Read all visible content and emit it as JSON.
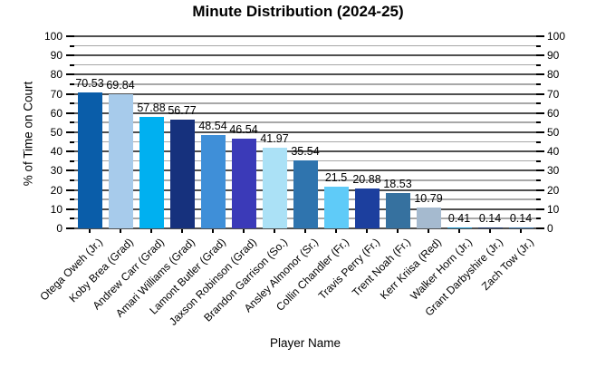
{
  "chart_data": {
    "type": "bar",
    "title": "Minute Distribution (2024-25)",
    "xlabel": "Player Name",
    "ylabel": "% of Time on Court",
    "ylim": [
      0,
      100
    ],
    "ytick_step": 10,
    "yminor_step": 5,
    "grid": true,
    "legend": "none",
    "categories": [
      "Otega Oweh (Jr.)",
      "Koby Brea (Grad)",
      "Andrew Carr (Grad)",
      "Amari Williams (Grad)",
      "Lamont Butler (Grad)",
      "Jaxson Robinson (Grad)",
      "Brandon Garrison (So.)",
      "Ansley Almonor (Sr.)",
      "Collin Chandler (Fr.)",
      "Travis Perry (Fr.)",
      "Trent Noah (Fr.)",
      "Kerr Kriisa (Red)",
      "Walker Horn (Jr.)",
      "Grant Darbyshire (Jr.)",
      "Zach Tow (Jr.)"
    ],
    "values": [
      70.53,
      69.84,
      57.88,
      56.77,
      48.54,
      46.54,
      41.97,
      35.54,
      21.5,
      20.88,
      18.53,
      10.79,
      0.41,
      0.14,
      0.14
    ],
    "value_labels": [
      "70.53",
      "69.84",
      "57.88",
      "56.77",
      "48.54",
      "46.54",
      "41.97",
      "35.54",
      "21.5",
      "20.88",
      "18.53",
      "10.79",
      "0.41",
      "0.14",
      "0.14"
    ],
    "bar_colors": [
      "#0A5DA9",
      "#A7CBEB",
      "#00B0F0",
      "#16317D",
      "#3F8FD8",
      "#3B3AB8",
      "#ABE1F6",
      "#2F74AE",
      "#5FCBF8",
      "#1C3F9E",
      "#36719F",
      "#A5BACF",
      "#1F96CE",
      "#1F3A6E",
      "#3C74A8"
    ],
    "grid_major_color": "#4f4f4f",
    "grid_minor_color": "#a8a8a8"
  }
}
